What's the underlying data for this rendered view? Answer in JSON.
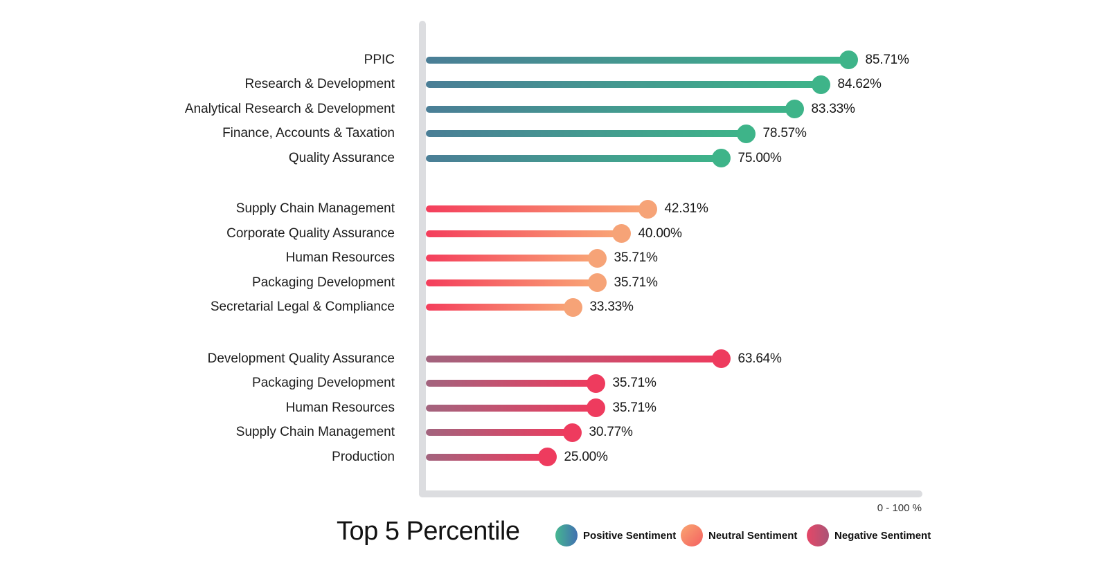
{
  "chart_data": {
    "type": "bar",
    "subtype": "lollipop-grouped-horizontal",
    "title": "Top 5 Percentile",
    "x_axis_note": "0 - 100 %",
    "xlim": [
      0,
      100
    ],
    "grid": false,
    "legend_position": "bottom",
    "axis_color": "#dcdde0",
    "series": [
      {
        "name": "Positive Sentiment",
        "bar_gradient": [
          "#4a7e96",
          "#3eb489"
        ],
        "dot_color": "#3eb489",
        "items": [
          {
            "label": "PPIC",
            "value": 85.71,
            "display": "85.71%"
          },
          {
            "label": "Research & Development",
            "value": 84.62,
            "display": "84.62%"
          },
          {
            "label": "Analytical Research & Development",
            "value": 83.33,
            "display": "83.33%"
          },
          {
            "label": "Finance, Accounts & Taxation",
            "value": 78.57,
            "display": "78.57%"
          },
          {
            "label": "Quality Assurance",
            "value": 75.0,
            "display": "75.00%"
          }
        ]
      },
      {
        "name": "Neutral Sentiment",
        "bar_gradient": [
          "#f43e5c",
          "#f9a676"
        ],
        "dot_color": "#f6a377",
        "items": [
          {
            "label": "Supply Chain Management",
            "value": 42.31,
            "display": "42.31%"
          },
          {
            "label": "Corporate Quality Assurance",
            "value": 40.0,
            "display": "40.00%"
          },
          {
            "label": "Human Resources",
            "value": 35.71,
            "display": "35.71%"
          },
          {
            "label": "Packaging Development",
            "value": 35.71,
            "display": "35.71%"
          },
          {
            "label": "Secretarial Legal & Compliance",
            "value": 33.33,
            "display": "33.33%"
          }
        ]
      },
      {
        "name": "Negative Sentiment",
        "bar_gradient": [
          "#a2647e",
          "#ee3b5e"
        ],
        "dot_color": "#ee3b5e",
        "items": [
          {
            "label": "Development Quality Assurance",
            "value": 63.64,
            "display": "63.64%"
          },
          {
            "label": "Packaging Development",
            "value": 35.71,
            "display": "35.71%"
          },
          {
            "label": "Human Resources",
            "value": 35.71,
            "display": "35.71%"
          },
          {
            "label": "Supply Chain Management",
            "value": 30.77,
            "display": "30.77%"
          },
          {
            "label": "Production",
            "value": 25.0,
            "display": "25.00%"
          }
        ]
      }
    ],
    "legend": [
      {
        "label": "Positive Sentiment",
        "gradient": [
          "#46b791",
          "#4170b0"
        ]
      },
      {
        "label": "Neutral Sentiment",
        "gradient": [
          "#f9a771",
          "#f45f61"
        ]
      },
      {
        "label": "Negative Sentiment",
        "gradient": [
          "#e54767",
          "#aa5476"
        ]
      }
    ]
  }
}
